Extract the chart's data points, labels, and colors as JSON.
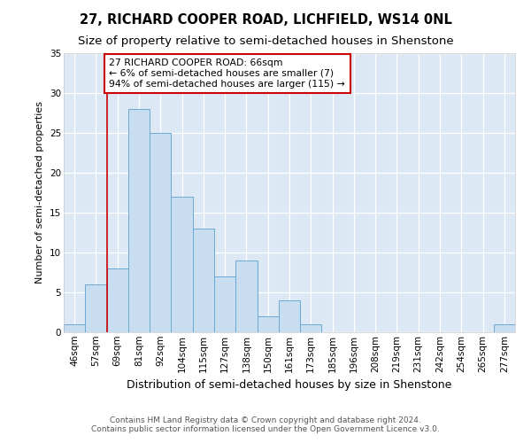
{
  "title": "27, RICHARD COOPER ROAD, LICHFIELD, WS14 0NL",
  "subtitle": "Size of property relative to semi-detached houses in Shenstone",
  "xlabel": "Distribution of semi-detached houses by size in Shenstone",
  "ylabel": "Number of semi-detached properties",
  "bin_edges": [
    46,
    57,
    69,
    81,
    92,
    104,
    115,
    127,
    138,
    150,
    161,
    173,
    185,
    196,
    208,
    219,
    231,
    242,
    254,
    265,
    277
  ],
  "bar_heights": [
    1,
    6,
    8,
    28,
    25,
    17,
    13,
    7,
    9,
    2,
    4,
    1,
    0,
    0,
    0,
    0,
    0,
    0,
    0,
    0,
    1
  ],
  "bar_color": "#c9ddf0",
  "bar_edge_color": "#6aaad4",
  "property_size": 66,
  "vline_color": "#cc0000",
  "annotation_text": "27 RICHARD COOPER ROAD: 66sqm\n← 6% of semi-detached houses are smaller (7)\n94% of semi-detached houses are larger (115) →",
  "annotation_box_color": "#ffffff",
  "annotation_box_edge": "#cc0000",
  "ylim": [
    0,
    35
  ],
  "yticks": [
    0,
    5,
    10,
    15,
    20,
    25,
    30,
    35
  ],
  "tick_labels": [
    "46sqm",
    "57sqm",
    "69sqm",
    "81sqm",
    "92sqm",
    "104sqm",
    "115sqm",
    "127sqm",
    "138sqm",
    "150sqm",
    "161sqm",
    "173sqm",
    "185sqm",
    "196sqm",
    "208sqm",
    "219sqm",
    "231sqm",
    "242sqm",
    "254sqm",
    "265sqm",
    "277sqm"
  ],
  "plot_bg_color": "#dce9f5",
  "fig_bg_color": "#ffffff",
  "grid_color": "#ffffff",
  "footer_line1": "Contains HM Land Registry data © Crown copyright and database right 2024.",
  "footer_line2": "Contains public sector information licensed under the Open Government Licence v3.0.",
  "title_fontsize": 10.5,
  "subtitle_fontsize": 9.5,
  "xlabel_fontsize": 9,
  "ylabel_fontsize": 8,
  "tick_fontsize": 7.5,
  "annotation_fontsize": 7.8,
  "footer_fontsize": 6.5
}
